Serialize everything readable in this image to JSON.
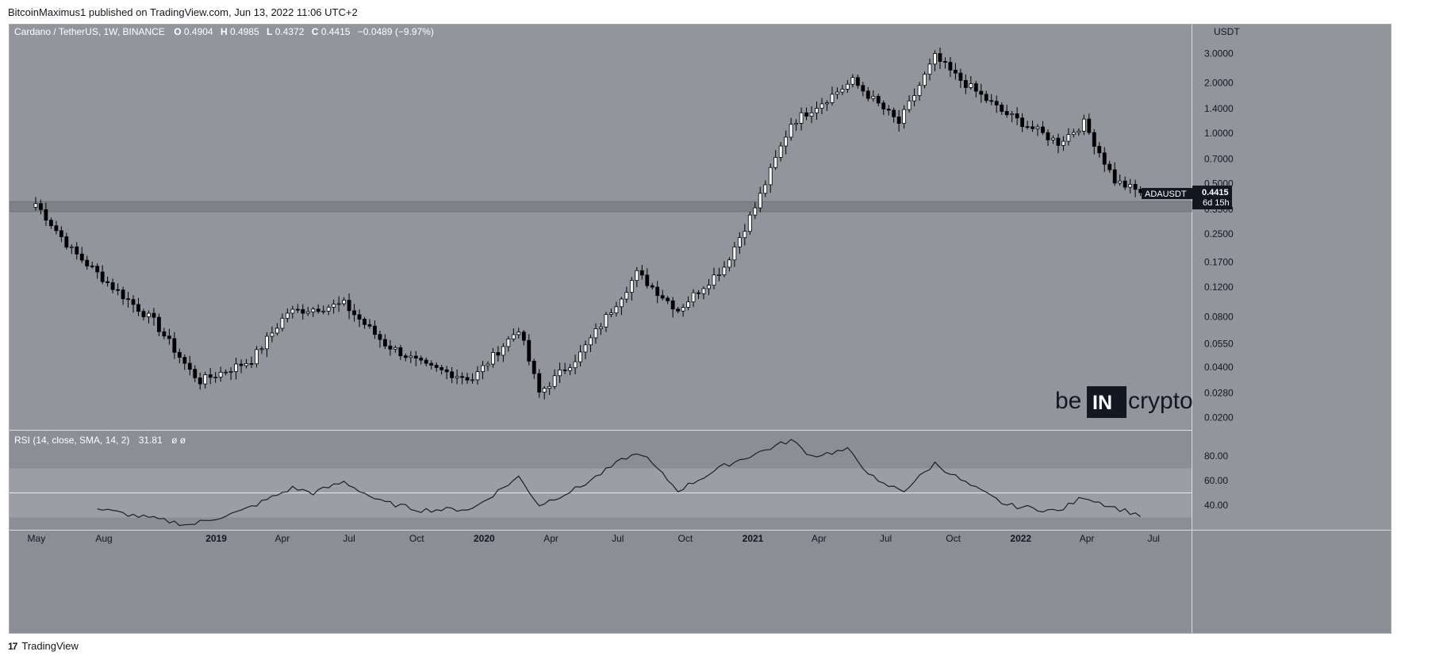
{
  "header": {
    "published_by": "BitcoinMaximus1 published on TradingView.com, Jun 13, 2022 11:06 UTC+2"
  },
  "footer": {
    "brand": "TradingView"
  },
  "watermark": {
    "left": "be",
    "middle": "IN",
    "right": "crypto"
  },
  "legend": {
    "symbol": "Cardano / TetherUS, 1W, BINANCE",
    "o_label": "O",
    "o_value": "0.4904",
    "h_label": "H",
    "h_value": "0.4985",
    "l_label": "L",
    "l_value": "0.4372",
    "c_label": "C",
    "c_value": "0.4415",
    "change": "−0.0489 (−9.97%)"
  },
  "price_axis": {
    "currency": "USDT",
    "ticks": [
      "3.0000",
      "2.0000",
      "1.4000",
      "1.0000",
      "0.7000",
      "0.5000",
      "0.3500",
      "0.2500",
      "0.1700",
      "0.1200",
      "0.0800",
      "0.0550",
      "0.0400",
      "0.0280",
      "0.0200"
    ]
  },
  "last_price": {
    "symbol": "ADAUSDT",
    "price": "0.4415",
    "countdown": "6d 15h"
  },
  "rsi": {
    "label": "RSI (14, close, SMA, 14, 2)",
    "value": "31.81",
    "extra": "ø ø",
    "ticks": [
      "80.00",
      "60.00",
      "40.00"
    ]
  },
  "time_axis": {
    "labels": [
      "May",
      "Aug",
      "2019",
      "Apr",
      "Jul",
      "Oct",
      "2020",
      "Apr",
      "Jul",
      "Oct",
      "2021",
      "Apr",
      "Jul",
      "Oct",
      "2022",
      "Apr",
      "Jul"
    ]
  },
  "chart_data": [
    {
      "type": "candlestick",
      "title": "Cardano / TetherUS, 1W, BINANCE",
      "yscale": "log",
      "ylim": [
        0.018,
        4.0
      ],
      "x_range": [
        "2018-04-16",
        "2022-07-31"
      ],
      "support_zone": [
        0.34,
        0.39
      ],
      "key_points": [
        {
          "x": "2018-04-30",
          "y": 0.38
        },
        {
          "x": "2018-06-18",
          "y": 0.2
        },
        {
          "x": "2018-08-13",
          "y": 0.12
        },
        {
          "x": "2018-10-08",
          "y": 0.075
        },
        {
          "x": "2018-11-26",
          "y": 0.038
        },
        {
          "x": "2018-12-10",
          "y": 0.033
        },
        {
          "x": "2019-02-18",
          "y": 0.044
        },
        {
          "x": "2019-04-08",
          "y": 0.085
        },
        {
          "x": "2019-06-24",
          "y": 0.095
        },
        {
          "x": "2019-08-19",
          "y": 0.055
        },
        {
          "x": "2019-10-14",
          "y": 0.04
        },
        {
          "x": "2019-12-16",
          "y": 0.034
        },
        {
          "x": "2020-02-17",
          "y": 0.068
        },
        {
          "x": "2020-03-16",
          "y": 0.028
        },
        {
          "x": "2020-05-11",
          "y": 0.048
        },
        {
          "x": "2020-07-27",
          "y": 0.145
        },
        {
          "x": "2020-09-21",
          "y": 0.088
        },
        {
          "x": "2020-11-23",
          "y": 0.16
        },
        {
          "x": "2021-01-04",
          "y": 0.36
        },
        {
          "x": "2021-02-22",
          "y": 1.15
        },
        {
          "x": "2021-05-17",
          "y": 2.05
        },
        {
          "x": "2021-07-19",
          "y": 1.15
        },
        {
          "x": "2021-09-06",
          "y": 2.85
        },
        {
          "x": "2021-10-04",
          "y": 2.2
        },
        {
          "x": "2021-12-06",
          "y": 1.35
        },
        {
          "x": "2022-02-21",
          "y": 0.88
        },
        {
          "x": "2022-03-28",
          "y": 1.15
        },
        {
          "x": "2022-05-09",
          "y": 0.52
        },
        {
          "x": "2022-06-13",
          "y": 0.4415
        }
      ]
    },
    {
      "type": "line",
      "title": "RSI (14, close, SMA, 14, 2)",
      "ylim": [
        20,
        100
      ],
      "bands": [
        30,
        50,
        70
      ],
      "points": [
        {
          "x": "2018-07-23",
          "y": 37
        },
        {
          "x": "2018-09-17",
          "y": 31
        },
        {
          "x": "2018-11-26",
          "y": 24
        },
        {
          "x": "2019-02-04",
          "y": 35
        },
        {
          "x": "2019-04-15",
          "y": 54
        },
        {
          "x": "2019-05-13",
          "y": 50
        },
        {
          "x": "2019-06-24",
          "y": 59
        },
        {
          "x": "2019-08-12",
          "y": 43
        },
        {
          "x": "2019-10-07",
          "y": 36
        },
        {
          "x": "2019-12-16",
          "y": 37
        },
        {
          "x": "2020-02-17",
          "y": 63
        },
        {
          "x": "2020-03-16",
          "y": 40
        },
        {
          "x": "2020-05-11",
          "y": 55
        },
        {
          "x": "2020-07-13",
          "y": 79
        },
        {
          "x": "2020-08-03",
          "y": 82
        },
        {
          "x": "2020-09-21",
          "y": 52
        },
        {
          "x": "2020-11-23",
          "y": 72
        },
        {
          "x": "2021-02-22",
          "y": 93
        },
        {
          "x": "2021-03-22",
          "y": 80
        },
        {
          "x": "2021-05-10",
          "y": 85
        },
        {
          "x": "2021-06-21",
          "y": 58
        },
        {
          "x": "2021-07-26",
          "y": 52
        },
        {
          "x": "2021-09-06",
          "y": 74
        },
        {
          "x": "2021-10-18",
          "y": 58
        },
        {
          "x": "2021-12-13",
          "y": 40
        },
        {
          "x": "2022-02-21",
          "y": 35
        },
        {
          "x": "2022-03-28",
          "y": 47
        },
        {
          "x": "2022-05-09",
          "y": 38
        },
        {
          "x": "2022-06-13",
          "y": 31.81
        }
      ]
    }
  ]
}
